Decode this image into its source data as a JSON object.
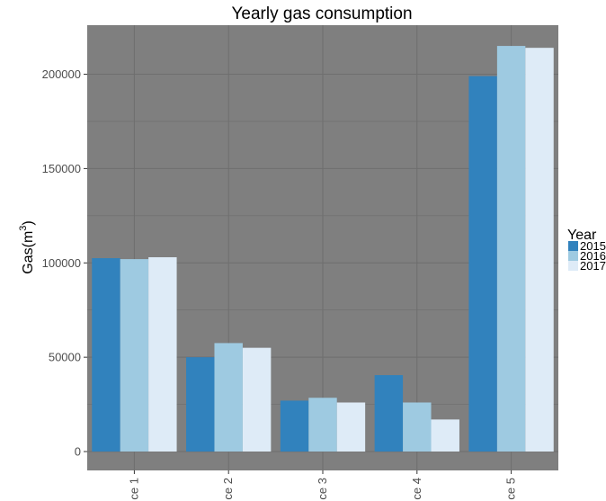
{
  "chart_data": {
    "type": "bar",
    "title": "Yearly gas consumption",
    "xlabel": "",
    "ylabel": "Gas(m",
    "ylabel_superscript": "3",
    "ylabel_suffix": ")",
    "categories": [
      "ce 1",
      "ce 2",
      "ce 3",
      "ce 4",
      "ce 5"
    ],
    "series": [
      {
        "name": "2015",
        "color": "#3182bd",
        "values": [
          102500,
          50000,
          27000,
          40500,
          199000
        ]
      },
      {
        "name": "2016",
        "color": "#9ecae1",
        "values": [
          102000,
          57500,
          28500,
          26000,
          215000
        ]
      },
      {
        "name": "2017",
        "color": "#deebf7",
        "values": [
          103000,
          55000,
          26000,
          17000,
          214000
        ]
      }
    ],
    "ylim": [
      -10000,
      226000
    ],
    "yticks": [
      0,
      50000,
      100000,
      150000,
      200000
    ],
    "ytick_labels": [
      "0",
      "50000",
      "100000",
      "150000",
      "200000"
    ],
    "panel_color": "#7f7f7f",
    "grid_color": "#6e6e6e",
    "legend": {
      "title": "Year",
      "position": "right"
    },
    "grid": true
  }
}
